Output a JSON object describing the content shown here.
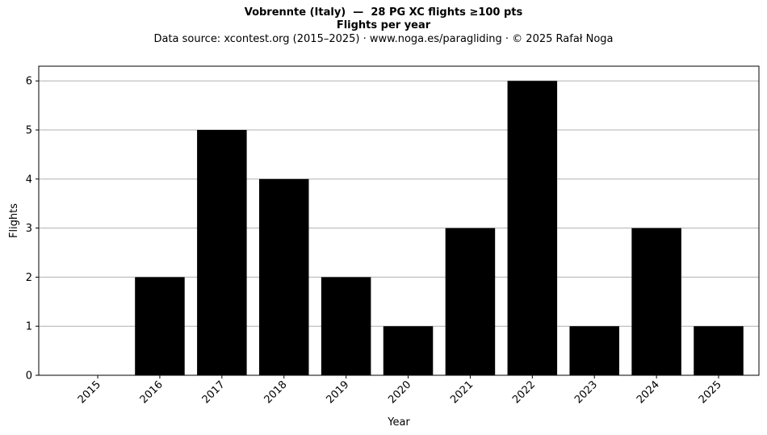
{
  "chart_data": {
    "type": "bar",
    "title": "Vobrennte (Italy)  —  28 PG XC flights ≥100 pts",
    "subtitle": "Flights per year",
    "source": "Data source: xcontest.org (2015–2025)  ·  www.noga.es/paragliding  ·  © 2025 Rafał Noga",
    "xlabel": "Year",
    "ylabel": "Flights",
    "categories": [
      "2015",
      "2016",
      "2017",
      "2018",
      "2019",
      "2020",
      "2021",
      "2022",
      "2023",
      "2024",
      "2025"
    ],
    "values": [
      0,
      2,
      5,
      4,
      2,
      1,
      3,
      6,
      1,
      3,
      1
    ],
    "ylim": [
      0,
      6.3
    ],
    "yticks": [
      0,
      1,
      2,
      3,
      4,
      5,
      6
    ],
    "grid": "horizontal",
    "bar_color": "#000000",
    "grid_color": "#b0b0b0"
  }
}
